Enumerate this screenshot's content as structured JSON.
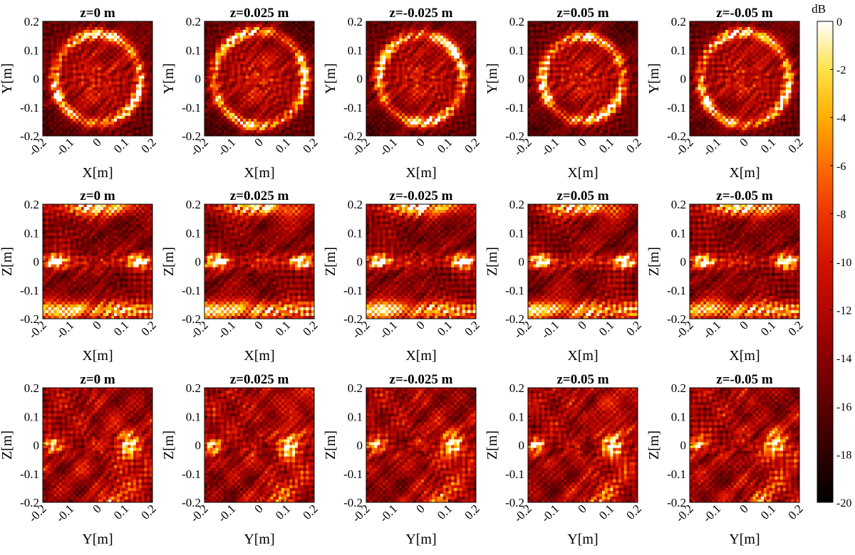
{
  "chart_data": {
    "type": "heatmap",
    "colormap": "hot",
    "colorbar": {
      "label": "dB",
      "range": [
        -20,
        0
      ],
      "ticks": [
        0,
        -2,
        -4,
        -6,
        -8,
        -10,
        -12,
        -14,
        -16,
        -18,
        -20
      ],
      "tick_labels": [
        "0",
        "-2",
        "-4",
        "-6",
        "-8",
        "-10",
        "-12",
        "-14",
        "-16",
        "-18",
        "-20"
      ]
    },
    "panel_titles": [
      "z=0 m",
      "z=0.025 m",
      "z=-0.025 m",
      "z=0.05 m",
      "z=-0.05 m"
    ],
    "rows": [
      {
        "xlabel": "X[m]",
        "ylabel": "Y[m]",
        "pattern": "ring"
      },
      {
        "xlabel": "X[m]",
        "ylabel": "Z[m]",
        "pattern": "cross"
      },
      {
        "xlabel": "Y[m]",
        "ylabel": "Z[m]",
        "pattern": "diffuse"
      }
    ],
    "axis_ticks": [
      -0.2,
      -0.1,
      0,
      0.1,
      0.2
    ],
    "x_tick_labels": [
      "-0.2",
      "-0.1",
      "0",
      "0.1",
      "0.2"
    ],
    "y_tick_labels": [
      "0.2",
      "0.1",
      "0",
      "-0.1",
      "-0.2"
    ],
    "xlim": [
      -0.2,
      0.2
    ],
    "ylim": [
      -0.2,
      0.2
    ],
    "grid": false,
    "colors": {
      "cmap_black": "#000000",
      "cmap_red": "#e41a00",
      "cmap_orange": "#ff8c00",
      "cmap_yellow": "#ffe600",
      "cmap_white": "#ffffff"
    }
  }
}
